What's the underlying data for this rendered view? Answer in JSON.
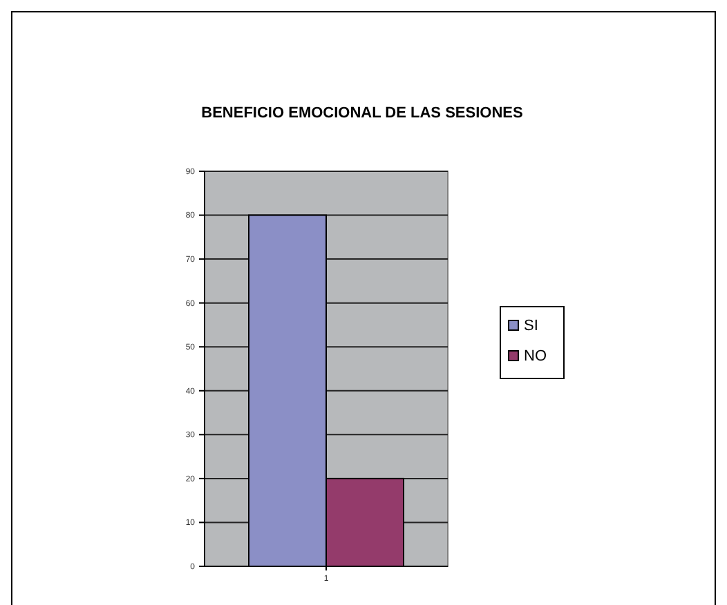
{
  "chart_data": {
    "type": "bar",
    "title": "BENEFICIO EMOCIONAL DE LAS SESIONES",
    "categories": [
      "1"
    ],
    "series": [
      {
        "name": "SI",
        "color": "#8b8fc6",
        "values": [
          80
        ]
      },
      {
        "name": "NO",
        "color": "#943b6b",
        "values": [
          20
        ]
      }
    ],
    "ylim": [
      0,
      90
    ],
    "yticks": [
      0,
      10,
      20,
      30,
      40,
      50,
      60,
      70,
      80,
      90
    ],
    "grid": "y",
    "legend": "right"
  }
}
